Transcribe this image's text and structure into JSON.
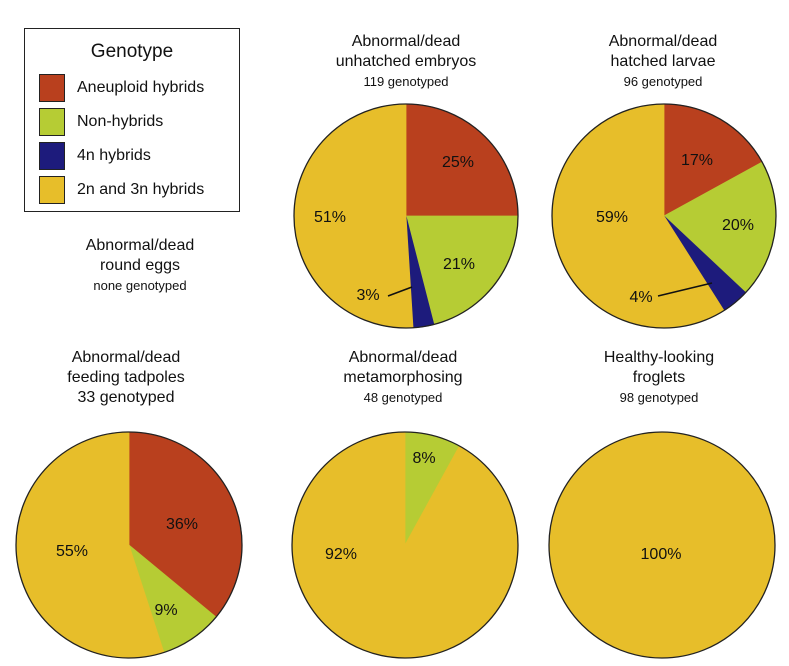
{
  "legend": {
    "title": "Genotype",
    "items": [
      {
        "label": "Aneuploid hybrids",
        "color": "#b9401e"
      },
      {
        "label": "Non-hybrids",
        "color": "#b6cc34"
      },
      {
        "label": "4n hybrids",
        "color": "#1d1b7c"
      },
      {
        "label": "2n and 3n hybrids",
        "color": "#e7be2a"
      }
    ]
  },
  "colors": {
    "Aneuploid hybrids": "#b9401e",
    "Non-hybrids": "#b6cc34",
    "4n hybrids": "#1d1b7c",
    "2n and 3n hybrids": "#e7be2a"
  },
  "round_eggs": {
    "line1": "Abnormal/dead",
    "line2": "round eggs",
    "line3": "none genotyped"
  },
  "chart_data": [
    {
      "type": "pie",
      "title_lines": [
        "Abnormal/dead",
        "unhatched embryos"
      ],
      "genotyped": "119 genotyped",
      "slices": [
        {
          "name": "Aneuploid hybrids",
          "value": 25,
          "label": "25%"
        },
        {
          "name": "Non-hybrids",
          "value": 21,
          "label": "21%"
        },
        {
          "name": "4n hybrids",
          "value": 3,
          "label": "3%"
        },
        {
          "name": "2n and 3n hybrids",
          "value": 51,
          "label": "51%"
        }
      ]
    },
    {
      "type": "pie",
      "title_lines": [
        "Abnormal/dead",
        "hatched larvae"
      ],
      "genotyped": "96 genotyped",
      "slices": [
        {
          "name": "Aneuploid hybrids",
          "value": 17,
          "label": "17%"
        },
        {
          "name": "Non-hybrids",
          "value": 20,
          "label": "20%"
        },
        {
          "name": "4n hybrids",
          "value": 4,
          "label": "4%"
        },
        {
          "name": "2n and 3n hybrids",
          "value": 59,
          "label": "59%"
        }
      ]
    },
    {
      "type": "pie",
      "title_lines": [
        "Abnormal/dead",
        "feeding tadpoles"
      ],
      "genotyped": "33 genotyped",
      "slices": [
        {
          "name": "Aneuploid hybrids",
          "value": 36,
          "label": "36%"
        },
        {
          "name": "Non-hybrids",
          "value": 9,
          "label": "9%"
        },
        {
          "name": "2n and 3n hybrids",
          "value": 55,
          "label": "55%"
        }
      ]
    },
    {
      "type": "pie",
      "title_lines": [
        "Abnormal/dead",
        "metamorphosing"
      ],
      "genotyped": "48 genotyped",
      "slices": [
        {
          "name": "Non-hybrids",
          "value": 8,
          "label": "8%"
        },
        {
          "name": "2n and 3n hybrids",
          "value": 92,
          "label": "92%"
        }
      ]
    },
    {
      "type": "pie",
      "title_lines": [
        "Healthy-looking",
        "froglets"
      ],
      "genotyped": "98 genotyped",
      "slices": [
        {
          "name": "2n and 3n hybrids",
          "value": 100,
          "label": "100%"
        }
      ]
    }
  ]
}
